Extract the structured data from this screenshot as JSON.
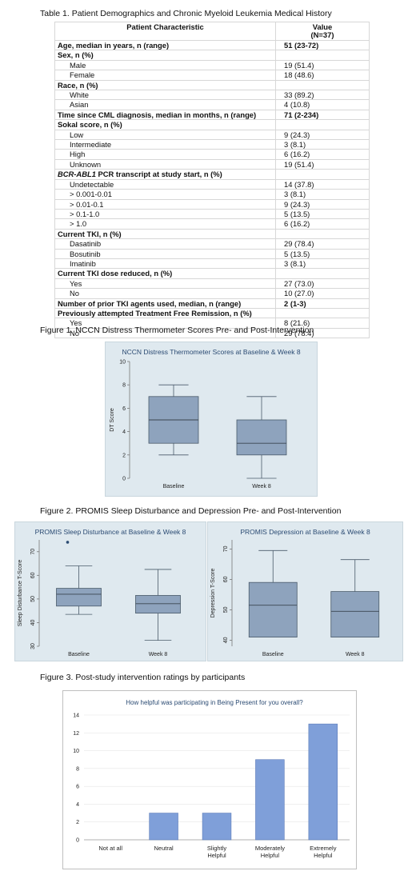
{
  "table": {
    "caption": "Table 1. Patient Demographics and Chronic Myeloid Leukemia Medical History",
    "header": {
      "col1": "Patient Characteristic",
      "col2_line1": "Value",
      "col2_line2": "(N=37)"
    },
    "rows": [
      {
        "label": "Age, median in years, n (range)",
        "value": "51 (23-72)",
        "bold": true
      },
      {
        "label": "Sex,  n (%)",
        "value": "",
        "bold": true
      },
      {
        "label": "Male",
        "value": "19 (51.4)",
        "sub": true
      },
      {
        "label": "Female",
        "value": "18 (48.6)",
        "sub": true
      },
      {
        "label": "Race,  n (%)",
        "value": "",
        "bold": true
      },
      {
        "label": "White",
        "value": "33 (89.2)",
        "sub": true
      },
      {
        "label": "Asian",
        "value": "4 (10.8)",
        "sub": true
      },
      {
        "label": "Time since CML diagnosis, median in months, n (range)",
        "value": "71 (2-234)",
        "bold": true
      },
      {
        "label": "Sokal score,  n (%)",
        "value": "",
        "bold": true
      },
      {
        "label": "Low",
        "value": "9 (24.3)",
        "sub": true
      },
      {
        "label": "Intermediate",
        "value": "3 (8.1)",
        "sub": true
      },
      {
        "label": "High",
        "value": "6 (16.2)",
        "sub": true
      },
      {
        "label": "Unknown",
        "value": "19 (51.4)",
        "sub": true
      },
      {
        "label": "BCR-ABL1 PCR transcript at study start,  n (%)",
        "value": "",
        "bold": true,
        "gene": "BCR-ABL1"
      },
      {
        "label": "Undetectable",
        "value": "14 (37.8)",
        "sub": true
      },
      {
        "label": "> 0.001-0.01",
        "value": "3 (8.1)",
        "sub": true
      },
      {
        "label": "> 0.01-0.1",
        "value": "9 (24.3)",
        "sub": true
      },
      {
        "label": "> 0.1-1.0",
        "value": "5 (13.5)",
        "sub": true
      },
      {
        "label": "> 1.0",
        "value": "6 (16.2)",
        "sub": true
      },
      {
        "label": "Current TKI,  n (%)",
        "value": "",
        "bold": true
      },
      {
        "label": "Dasatinib",
        "value": "29 (78.4)",
        "sub": true
      },
      {
        "label": "Bosutinib",
        "value": "5 (13.5)",
        "sub": true
      },
      {
        "label": "Imatinib",
        "value": "3 (8.1)",
        "sub": true
      },
      {
        "label": "Current TKI dose reduced,  n (%)",
        "value": "",
        "bold": true
      },
      {
        "label": "Yes",
        "value": "27 (73.0)",
        "sub": true
      },
      {
        "label": "No",
        "value": "10 (27.0)",
        "sub": true
      },
      {
        "label": "Number of prior TKI agents used,  median, n (range)",
        "value": "2 (1-3)",
        "bold": true
      },
      {
        "label": "Previously attempted Treatment Free Remission,  n (%)",
        "value": "",
        "bold": true
      },
      {
        "label": "Yes",
        "value": "8 (21.6)",
        "sub": true
      },
      {
        "label": "No",
        "value": "29 (78.4)",
        "sub": true
      }
    ]
  },
  "captions": {
    "fig1": "Figure 1. NCCN Distress Thermometer Scores Pre- and Post-Intervention",
    "fig2": "Figure 2. PROMIS Sleep Disturbance and Depression Pre- and Post-Intervention",
    "fig3": "Figure 3. Post-study intervention ratings by participants"
  },
  "chart_data": [
    {
      "id": "dt",
      "type": "box",
      "title": "NCCN Distress Thermometer Scores at Baseline & Week 8",
      "ylabel": "DT Score",
      "xlabel": "",
      "ylim": [
        0,
        10
      ],
      "yticks": [
        0,
        2,
        4,
        6,
        8,
        10
      ],
      "categories": [
        "Baseline",
        "Week 8"
      ],
      "boxes": [
        {
          "min": 2,
          "q1": 3,
          "median": 5,
          "q3": 7,
          "max": 8,
          "outliers": []
        },
        {
          "min": 0,
          "q1": 2,
          "median": 3,
          "q3": 5,
          "max": 7,
          "outliers": []
        }
      ],
      "colors": {
        "fill": "#8ea3bd",
        "stroke": "#4a5a6a",
        "bg": "#dfe9ef",
        "title": "#2b4b73"
      }
    },
    {
      "id": "sleep",
      "type": "box",
      "title": "PROMIS Sleep Disturbance at Baseline & Week 8",
      "ylabel": "Sleep Disturbance T-Score",
      "xlabel": "",
      "ylim": [
        30,
        75
      ],
      "yticks": [
        30,
        40,
        50,
        60,
        70
      ],
      "categories": [
        "Baseline",
        "Week 8"
      ],
      "boxes": [
        {
          "min": 43.5,
          "q1": 47,
          "median": 52,
          "q3": 54.5,
          "max": 64,
          "outliers": [
            74
          ]
        },
        {
          "min": 32.5,
          "q1": 44,
          "median": 48,
          "q3": 51.5,
          "max": 62.5,
          "outliers": []
        }
      ],
      "colors": {
        "fill": "#8ea3bd",
        "stroke": "#4a5a6a",
        "bg": "#dfe9ef",
        "title": "#2b4b73",
        "outlier": "#2b4b73"
      }
    },
    {
      "id": "dep",
      "type": "box",
      "title": "PROMIS Depression at Baseline & Week 8",
      "ylabel": "Depression T-Score",
      "xlabel": "",
      "ylim": [
        38,
        73
      ],
      "yticks": [
        40,
        50,
        60,
        70
      ],
      "categories": [
        "Baseline",
        "Week 8"
      ],
      "boxes": [
        {
          "min": 41,
          "q1": 41,
          "median": 51.5,
          "q3": 59,
          "max": 69.5,
          "outliers": []
        },
        {
          "min": 41,
          "q1": 41,
          "median": 49.5,
          "q3": 56,
          "max": 66.5,
          "outliers": []
        }
      ],
      "colors": {
        "fill": "#8ea3bd",
        "stroke": "#4a5a6a",
        "bg": "#dfe9ef",
        "title": "#2b4b73"
      }
    },
    {
      "id": "ratings",
      "type": "bar",
      "title": "How helpful was participating in Being Present for you overall?",
      "xlabel": "",
      "ylabel": "",
      "ylim": [
        0,
        14
      ],
      "yticks": [
        0,
        2,
        4,
        6,
        8,
        10,
        12,
        14
      ],
      "categories": [
        "Not at all",
        "Neutral",
        "Slightly Helpful",
        "Moderately Helpful",
        "Extremely Helpful"
      ],
      "values": [
        0,
        3,
        3,
        9,
        13
      ],
      "colors": {
        "bar": "#7f9fd9",
        "barStroke": "#5c7cb8",
        "bg": "#ffffff",
        "title": "#444444"
      }
    }
  ]
}
